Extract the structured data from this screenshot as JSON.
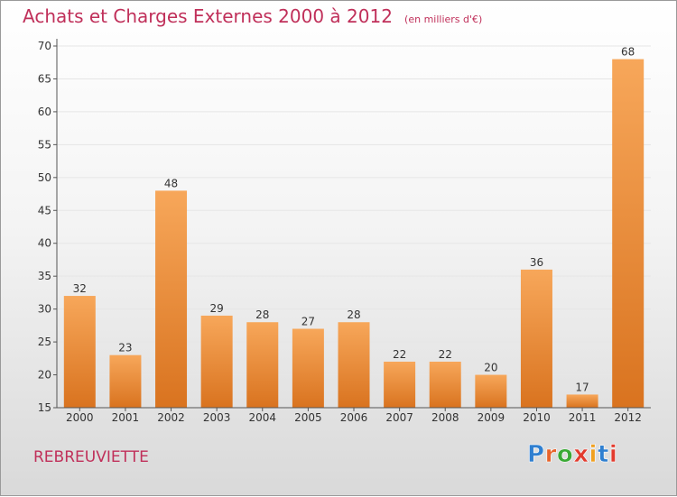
{
  "title": "Achats et Charges Externes 2000 à 2012",
  "subtitle": "(en milliers d'€)",
  "commune": "REBREUVIETTE",
  "logo": {
    "text": "Proxiti",
    "letter_colors": [
      "#2f7fd0",
      "#e8632a",
      "#3aa935",
      "#e23b2e",
      "#f0a020",
      "#2f7fd0",
      "#e23b2e"
    ]
  },
  "colors": {
    "bar_light": "#f7a75a",
    "bar_dark": "#d9731f",
    "title": "#c0305a",
    "grid": "#e6e6e6"
  },
  "chart_data": {
    "type": "bar",
    "categories": [
      "2000",
      "2001",
      "2002",
      "2003",
      "2004",
      "2005",
      "2006",
      "2007",
      "2008",
      "2009",
      "2010",
      "2011",
      "2012"
    ],
    "values": [
      32,
      23,
      48,
      29,
      28,
      27,
      28,
      22,
      22,
      20,
      36,
      17,
      68
    ],
    "ylim": [
      15,
      70
    ],
    "yticks": [
      15,
      20,
      25,
      30,
      35,
      40,
      45,
      50,
      55,
      60,
      65,
      70
    ],
    "grid": true,
    "data_labels": true
  }
}
